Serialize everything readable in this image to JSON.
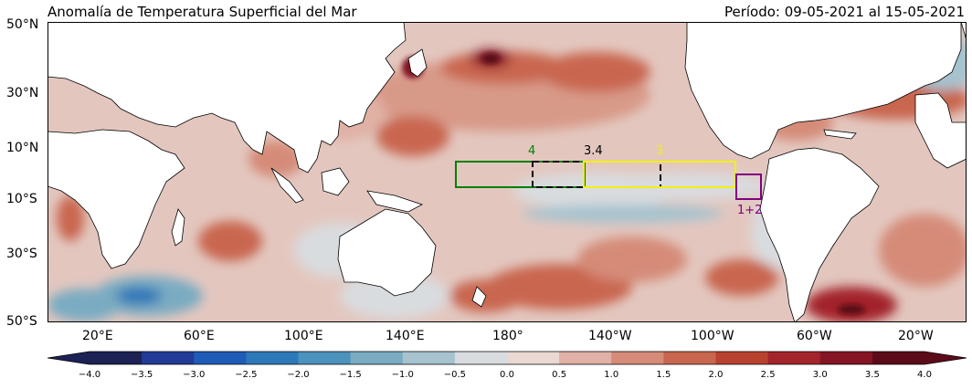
{
  "header": {
    "title": "Anomalía de Temperatura Superficial del Mar",
    "period": "Período: 09-05-2021 al 15-05-2021"
  },
  "lat_labels": [
    "50°N",
    "30°N",
    "10°N",
    "10°S",
    "30°S",
    "50°S"
  ],
  "lon_labels": [
    "20°E",
    "60°E",
    "100°E",
    "140°E",
    "180°",
    "140°W",
    "100°W",
    "60°W",
    "20°W"
  ],
  "regions": [
    {
      "label": "4",
      "color": "#008000"
    },
    {
      "label": "3.4",
      "color": "#000000"
    },
    {
      "label": "3",
      "color": "#f2f20a"
    },
    {
      "label": "1+2",
      "color": "#800080"
    }
  ],
  "colorbar": {
    "ticks": [
      "−4.0",
      "−3.5",
      "−3.0",
      "−2.5",
      "−2.0",
      "−1.5",
      "−1.0",
      "−0.5",
      "0.0",
      "0.5",
      "1.0",
      "1.5",
      "2.0",
      "2.5",
      "3.0",
      "3.5",
      "4.0"
    ],
    "colors": [
      "#1c2254",
      "#233b96",
      "#1f5cb8",
      "#2d78b8",
      "#4b92bc",
      "#7aabc2",
      "#a6c3cf",
      "#d9dcdf",
      "#ead8d3",
      "#e0b1a4",
      "#d58b78",
      "#c9664f",
      "#b8422f",
      "#a3242a",
      "#851525",
      "#5c0c19"
    ]
  }
}
